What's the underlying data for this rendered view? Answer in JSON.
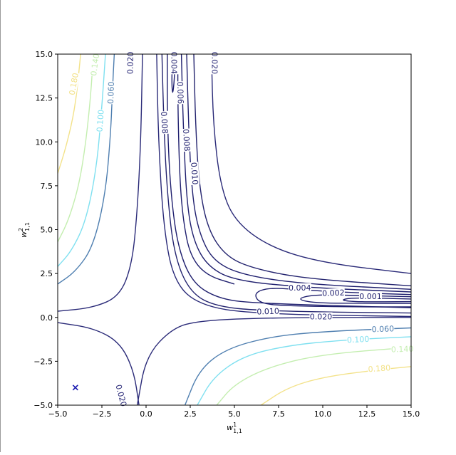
{
  "chart_data": {
    "type": "contour",
    "title": "",
    "xlabel": "w",
    "xlabel_sup": "1",
    "xlabel_sub": "1,1",
    "ylabel": "w",
    "ylabel_sup": "2",
    "ylabel_sub": "1,1",
    "xlim": [
      -5.0,
      15.0
    ],
    "ylim": [
      -5.0,
      15.0
    ],
    "xticks": [
      -5.0,
      -2.5,
      0.0,
      2.5,
      5.0,
      7.5,
      10.0,
      12.5,
      15.0
    ],
    "xtick_labels": [
      "−5.0",
      "−2.5",
      "0.0",
      "2.5",
      "5.0",
      "7.5",
      "10.0",
      "12.5",
      "15.0"
    ],
    "yticks": [
      -5.0,
      -2.5,
      0.0,
      2.5,
      5.0,
      7.5,
      10.0,
      12.5,
      15.0
    ],
    "ytick_labels": [
      "−5.0",
      "−2.5",
      "0.0",
      "2.5",
      "5.0",
      "7.5",
      "10.0",
      "12.5",
      "15.0"
    ],
    "grid": false,
    "levels": [
      {
        "value": 0.001,
        "label": "0.001",
        "color": "#1f1f6e"
      },
      {
        "value": 0.002,
        "label": "0.002",
        "color": "#1f1f6e"
      },
      {
        "value": 0.004,
        "label": "0.004",
        "color": "#1f1f6e"
      },
      {
        "value": 0.006,
        "label": "0.006",
        "color": "#1f1f6e"
      },
      {
        "value": 0.008,
        "label": "0.008",
        "color": "#1f1f6e"
      },
      {
        "value": 0.01,
        "label": "0.010",
        "color": "#24246f"
      },
      {
        "value": 0.02,
        "label": "0.020",
        "color": "#2a2a78"
      },
      {
        "value": 0.06,
        "label": "0.060",
        "color": "#4f7fb0"
      },
      {
        "value": 0.1,
        "label": "0.100",
        "color": "#7fe0f0"
      },
      {
        "value": 0.14,
        "label": "0.140",
        "color": "#c4eeb0"
      },
      {
        "value": 0.18,
        "label": "0.180",
        "color": "#f3e28a"
      }
    ],
    "marker": {
      "x": -4.0,
      "y": -4.0,
      "symbol": "x",
      "color": "#1a1ab0"
    }
  }
}
